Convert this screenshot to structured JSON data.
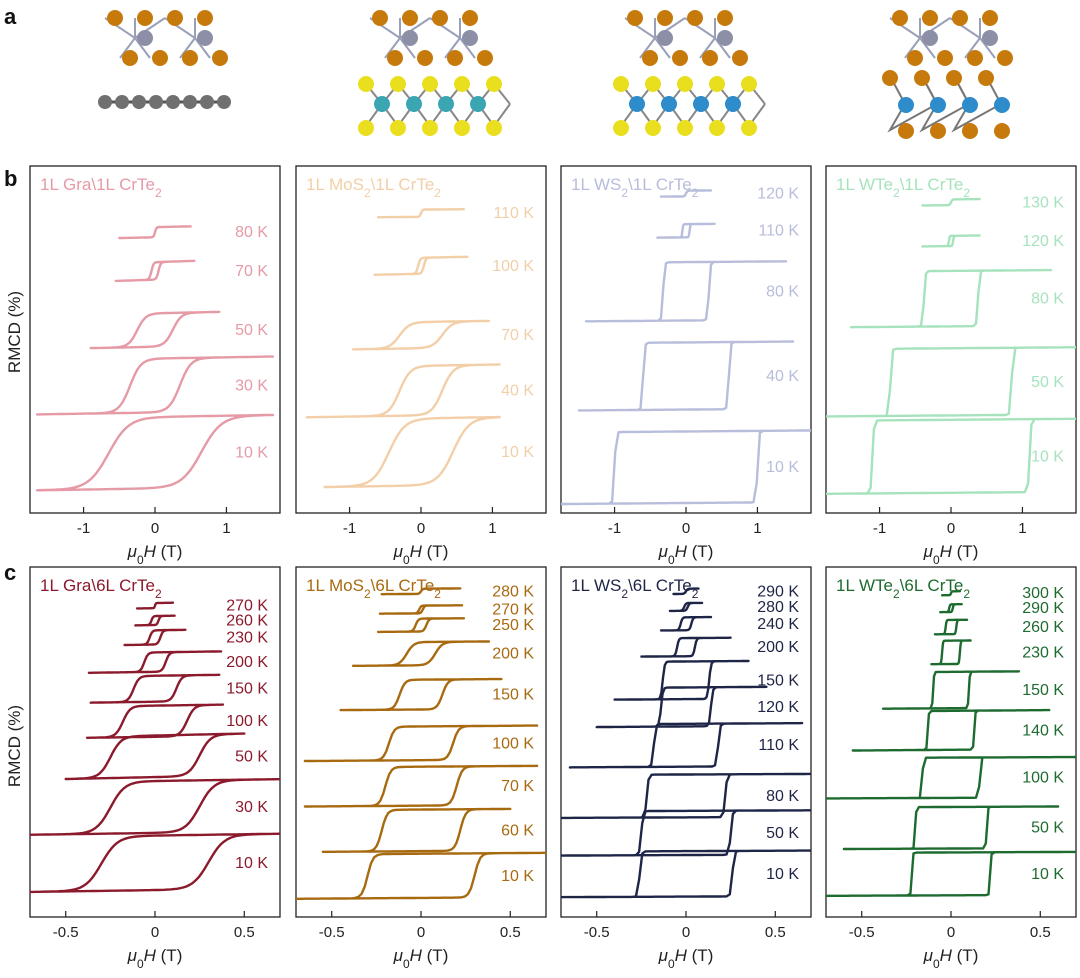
{
  "figure": {
    "panel_letters": [
      "a",
      "b",
      "c"
    ],
    "ylabel": "RMCD (%)",
    "xlabel_mu": "μ",
    "xlabel_sub": "0",
    "xlabel_H": "H",
    "xlabel_unit": " (T)"
  },
  "structures": [
    {
      "name": "Gra/CrTe2",
      "substrate": "graphene",
      "colors": {
        "cr": "#8c8fa6",
        "te": "#c77a0c",
        "c": "#707070"
      }
    },
    {
      "name": "MoS2/CrTe2",
      "substrate": "MoS2",
      "colors": {
        "cr": "#8c8fa6",
        "te": "#c77a0c",
        "m": "#3aa6b4",
        "x": "#eadf1e"
      }
    },
    {
      "name": "WS2/CrTe2",
      "substrate": "WS2",
      "colors": {
        "cr": "#8c8fa6",
        "te": "#c77a0c",
        "m": "#2d8cc9",
        "x": "#eadf1e"
      }
    },
    {
      "name": "WTe2/CrTe2",
      "substrate": "WTe2",
      "colors": {
        "cr": "#8c8fa6",
        "te": "#c77a0c",
        "m": "#2d8cc9",
        "x": "#c77a0c"
      }
    }
  ],
  "chart_data": [
    {
      "type": "line",
      "row": "b",
      "col": 0,
      "title_pre": "1L Gra\\1L CrTe",
      "title_sub": "2",
      "title_post": "",
      "color": "#e59aa6",
      "xlim": [
        -1.75,
        1.75
      ],
      "xticks": [
        -1,
        0,
        1
      ],
      "xtick_labels": [
        "-1",
        "0",
        "1"
      ],
      "xlabel": "μ0H (T)",
      "ylabel": "RMCD (%)",
      "series": [
        {
          "name": "80 K",
          "offset": 9.1,
          "hc": 0.0,
          "amp": 0.35,
          "w": 0.02,
          "xmin": -0.5,
          "xmax": 0.5,
          "slope": 0.05
        },
        {
          "name": "70 K",
          "offset": 7.65,
          "hc": 0.05,
          "amp": 0.6,
          "w": 0.03,
          "xmin": -0.55,
          "xmax": 0.55,
          "slope": 0.08
        },
        {
          "name": "50 K",
          "offset": 5.35,
          "hc": 0.25,
          "amp": 1.15,
          "w": 0.12,
          "xmin": -0.9,
          "xmax": 0.9,
          "slope": 0.05
        },
        {
          "name": "30 K",
          "offset": 3.1,
          "hc": 0.35,
          "amp": 1.85,
          "w": 0.15,
          "xmin": -1.65,
          "xmax": 1.65,
          "slope": 0.04
        },
        {
          "name": "10 K",
          "offset": 0.5,
          "hc": 0.65,
          "amp": 2.45,
          "w": 0.28,
          "xmin": -1.65,
          "xmax": 1.65,
          "slope": 0.04
        }
      ]
    },
    {
      "type": "line",
      "row": "b",
      "col": 1,
      "title_pre": "1L MoS",
      "title_sub": "2",
      "title_post": "\\1L CrTe",
      "title_sub2": "2",
      "color": "#f2cfa8",
      "xlim": [
        -1.75,
        1.75
      ],
      "xticks": [
        -1,
        0,
        1
      ],
      "xtick_labels": [
        "-1",
        "0",
        "1"
      ],
      "xlabel": "μ0H (T)",
      "ylabel": "RMCD (%)",
      "series": [
        {
          "name": "110 K",
          "offset": 9.8,
          "hc": 0.0,
          "amp": 0.25,
          "w": 0.02,
          "xmin": -0.6,
          "xmax": 0.6,
          "slope": 0.02
        },
        {
          "name": "100 K",
          "offset": 7.85,
          "hc": 0.04,
          "amp": 0.55,
          "w": 0.03,
          "xmin": -0.65,
          "xmax": 0.65,
          "slope": 0.05
        },
        {
          "name": "70 K",
          "offset": 5.3,
          "hc": 0.3,
          "amp": 0.9,
          "w": 0.14,
          "xmin": -0.95,
          "xmax": 0.95,
          "slope": 0.04
        },
        {
          "name": "40 K",
          "offset": 3.0,
          "hc": 0.3,
          "amp": 1.7,
          "w": 0.15,
          "xmin": -1.6,
          "xmax": 1.1,
          "slope": 0.04
        },
        {
          "name": "10 K",
          "offset": 0.6,
          "hc": 0.45,
          "amp": 2.3,
          "w": 0.22,
          "xmin": -1.35,
          "xmax": 1.1,
          "slope": 0.04
        }
      ]
    },
    {
      "type": "line",
      "row": "b",
      "col": 2,
      "title_pre": "1L WS",
      "title_sub": "2",
      "title_post": "\\1L CrTe",
      "title_sub2": "2",
      "color": "#b7bddb",
      "xlim": [
        -1.75,
        1.75
      ],
      "xticks": [
        -1,
        0,
        1
      ],
      "xtick_labels": [
        "-1",
        "0",
        "1"
      ],
      "xlabel": "μ0H (T)",
      "ylabel": "RMCD (%)",
      "series": [
        {
          "name": "120 K",
          "offset": 10.5,
          "hc": 0.0,
          "amp": 0.2,
          "w": 0.02,
          "xmin": -0.35,
          "xmax": 0.35,
          "slope": 0.02
        },
        {
          "name": "110 K",
          "offset": 9.1,
          "hc": 0.05,
          "amp": 0.45,
          "w": 0.01,
          "xmin": -0.4,
          "xmax": 0.4,
          "slope": 0.03
        },
        {
          "name": "80 K",
          "offset": 6.25,
          "hc": 0.32,
          "amp": 2.0,
          "w": 0.02,
          "xmin": -1.4,
          "xmax": 1.4,
          "slope": 0.02
        },
        {
          "name": "40 K",
          "offset": 3.2,
          "hc": 0.6,
          "amp": 2.3,
          "w": 0.02,
          "xmin": -1.5,
          "xmax": 1.5,
          "slope": 0.02
        },
        {
          "name": "10 K",
          "offset": 0.0,
          "hc": 1.0,
          "amp": 2.45,
          "w": 0.02,
          "xmin": -1.8,
          "xmax": 1.8,
          "slope": 0.02
        }
      ]
    },
    {
      "type": "line",
      "row": "b",
      "col": 3,
      "title_pre": "1L WTe",
      "title_sub": "2",
      "title_post": "\\1L CrTe",
      "title_sub2": "2",
      "color": "#a6e3bd",
      "xlim": [
        -1.75,
        1.75
      ],
      "xticks": [
        -1,
        0,
        1
      ],
      "xtick_labels": [
        "-1",
        "0",
        "1"
      ],
      "xlabel": "μ0H (T)",
      "ylabel": "RMCD (%)",
      "series": [
        {
          "name": "130 K",
          "offset": 10.2,
          "hc": 0.0,
          "amp": 0.2,
          "w": 0.02,
          "xmin": -0.4,
          "xmax": 0.4,
          "slope": 0.02
        },
        {
          "name": "120 K",
          "offset": 8.8,
          "hc": 0.03,
          "amp": 0.35,
          "w": 0.01,
          "xmin": -0.4,
          "xmax": 0.4,
          "slope": 0.03
        },
        {
          "name": "80 K",
          "offset": 6.05,
          "hc": 0.38,
          "amp": 1.9,
          "w": 0.02,
          "xmin": -1.4,
          "xmax": 1.4,
          "slope": 0.02
        },
        {
          "name": "50 K",
          "offset": 3.0,
          "hc": 0.85,
          "amp": 2.3,
          "w": 0.02,
          "xmin": -1.8,
          "xmax": 1.8,
          "slope": 0.02
        },
        {
          "name": "10 K",
          "offset": 0.35,
          "hc": 1.1,
          "amp": 2.5,
          "w": 0.02,
          "xmin": -1.8,
          "xmax": 1.8,
          "slope": 0.02
        }
      ]
    },
    {
      "type": "line",
      "row": "c",
      "col": 0,
      "title_pre": "1L Gra\\6L CrTe",
      "title_sub": "2",
      "title_post": "",
      "color": "#8b1a2c",
      "xlim": [
        -0.7,
        0.7
      ],
      "xticks": [
        -0.5,
        0,
        0.5
      ],
      "xtick_labels": [
        "-0.5",
        "0",
        "0.5"
      ],
      "xlabel": "μ0H (T)",
      "ylabel": "RMCD (%)",
      "series": [
        {
          "name": "270 K",
          "offset": 11.5,
          "hc": 0.0,
          "amp": 0.2,
          "w": 0.005,
          "xmin": -0.1,
          "xmax": 0.1,
          "slope": 0.1
        },
        {
          "name": "260 K",
          "offset": 10.85,
          "hc": 0.02,
          "amp": 0.35,
          "w": 0.01,
          "xmin": -0.11,
          "xmax": 0.11,
          "slope": 0.1
        },
        {
          "name": "230 K",
          "offset": 10.1,
          "hc": 0.03,
          "amp": 0.55,
          "w": 0.015,
          "xmin": -0.17,
          "xmax": 0.17,
          "slope": 0.1
        },
        {
          "name": "200 K",
          "offset": 9.05,
          "hc": 0.06,
          "amp": 0.75,
          "w": 0.02,
          "xmin": -0.37,
          "xmax": 0.37,
          "slope": 0.1
        },
        {
          "name": "150 K",
          "offset": 7.9,
          "hc": 0.12,
          "amp": 1.0,
          "w": 0.03,
          "xmin": -0.36,
          "xmax": 0.36,
          "slope": 0.1
        },
        {
          "name": "100 K",
          "offset": 6.55,
          "hc": 0.18,
          "amp": 1.2,
          "w": 0.04,
          "xmin": -0.38,
          "xmax": 0.38,
          "slope": 0.1
        },
        {
          "name": "50 K",
          "offset": 5.0,
          "hc": 0.25,
          "amp": 1.6,
          "w": 0.06,
          "xmin": -0.5,
          "xmax": 0.5,
          "slope": 0.15
        },
        {
          "name": "30 K",
          "offset": 2.85,
          "hc": 0.25,
          "amp": 2.0,
          "w": 0.08,
          "xmin": -0.7,
          "xmax": 0.7,
          "slope": 0.1
        },
        {
          "name": "10 K",
          "offset": 0.65,
          "hc": 0.3,
          "amp": 2.1,
          "w": 0.09,
          "xmin": -0.7,
          "xmax": 0.7,
          "slope": 0.1
        }
      ]
    },
    {
      "type": "line",
      "row": "c",
      "col": 1,
      "title_pre": "1L MoS",
      "title_sub": "2",
      "title_post": "\\6L CrTe",
      "title_sub2": "2",
      "color": "#a86a10",
      "xlim": [
        -0.7,
        0.7
      ],
      "xticks": [
        -0.5,
        0,
        0.5
      ],
      "xtick_labels": [
        "-0.5",
        "0",
        "0.5"
      ],
      "xlabel": "μ0H (T)",
      "ylabel": "RMCD (%)",
      "series": [
        {
          "name": "280 K",
          "offset": 12.05,
          "hc": 0.0,
          "amp": 0.2,
          "w": 0.01,
          "xmin": -0.22,
          "xmax": 0.22,
          "slope": 0.05
        },
        {
          "name": "270 K",
          "offset": 11.3,
          "hc": 0.01,
          "amp": 0.3,
          "w": 0.01,
          "xmin": -0.23,
          "xmax": 0.23,
          "slope": 0.05
        },
        {
          "name": "250 K",
          "offset": 10.6,
          "hc": 0.03,
          "amp": 0.5,
          "w": 0.015,
          "xmin": -0.24,
          "xmax": 0.24,
          "slope": 0.05
        },
        {
          "name": "200 K",
          "offset": 9.3,
          "hc": 0.08,
          "amp": 0.9,
          "w": 0.04,
          "xmin": -0.38,
          "xmax": 0.38,
          "slope": 0.05
        },
        {
          "name": "150 K",
          "offset": 7.6,
          "hc": 0.12,
          "amp": 1.15,
          "w": 0.03,
          "xmin": -0.45,
          "xmax": 0.45,
          "slope": 0.05
        },
        {
          "name": "100 K",
          "offset": 5.65,
          "hc": 0.18,
          "amp": 1.3,
          "w": 0.03,
          "xmin": -0.65,
          "xmax": 0.65,
          "slope": 0.05
        },
        {
          "name": "70 K",
          "offset": 3.9,
          "hc": 0.2,
          "amp": 1.5,
          "w": 0.03,
          "xmin": -0.65,
          "xmax": 0.65,
          "slope": 0.05
        },
        {
          "name": "60 K",
          "offset": 2.15,
          "hc": 0.22,
          "amp": 1.6,
          "w": 0.03,
          "xmin": -0.55,
          "xmax": 0.5,
          "slope": 0.05
        },
        {
          "name": "10 K",
          "offset": 0.35,
          "hc": 0.3,
          "amp": 1.7,
          "w": 0.03,
          "xmin": -0.7,
          "xmax": 0.7,
          "slope": 0.05
        }
      ]
    },
    {
      "type": "line",
      "row": "c",
      "col": 2,
      "title_pre": "1L WS",
      "title_sub": "2",
      "title_post": "\\6L CrTe",
      "title_sub2": "2",
      "color": "#1f2547",
      "xlim": [
        -0.7,
        0.7
      ],
      "xticks": [
        -0.5,
        0,
        0.5
      ],
      "xtick_labels": [
        "-0.5",
        "0",
        "0.5"
      ],
      "xlabel": "μ0H (T)",
      "ylabel": "RMCD (%)",
      "series": [
        {
          "name": "290 K",
          "offset": 12.05,
          "hc": 0.0,
          "amp": 0.2,
          "w": 0.01,
          "xmin": -0.07,
          "xmax": 0.07,
          "slope": 0.05
        },
        {
          "name": "280 K",
          "offset": 11.4,
          "hc": 0.01,
          "amp": 0.3,
          "w": 0.01,
          "xmin": -0.09,
          "xmax": 0.09,
          "slope": 0.05
        },
        {
          "name": "240 K",
          "offset": 10.65,
          "hc": 0.03,
          "amp": 0.5,
          "w": 0.01,
          "xmin": -0.14,
          "xmax": 0.14,
          "slope": 0.05
        },
        {
          "name": "200 K",
          "offset": 9.65,
          "hc": 0.05,
          "amp": 0.7,
          "w": 0.01,
          "xmin": -0.25,
          "xmax": 0.25,
          "slope": 0.05
        },
        {
          "name": "150 K",
          "offset": 8.0,
          "hc": 0.13,
          "amp": 1.45,
          "w": 0.01,
          "xmin": -0.4,
          "xmax": 0.35,
          "slope": 0.05
        },
        {
          "name": "120 K",
          "offset": 6.95,
          "hc": 0.14,
          "amp": 1.5,
          "w": 0.01,
          "xmin": -0.5,
          "xmax": 0.45,
          "slope": 0.05
        },
        {
          "name": "110 K",
          "offset": 5.4,
          "hc": 0.18,
          "amp": 1.65,
          "w": 0.01,
          "xmin": -0.65,
          "xmax": 0.65,
          "slope": 0.04
        },
        {
          "name": "80 K",
          "offset": 3.45,
          "hc": 0.22,
          "amp": 1.65,
          "w": 0.01,
          "xmin": -0.7,
          "xmax": 0.7,
          "slope": 0.03
        },
        {
          "name": "50 K",
          "offset": 2.0,
          "hc": 0.25,
          "amp": 1.7,
          "w": 0.01,
          "xmin": -0.7,
          "xmax": 0.7,
          "slope": 0.03
        },
        {
          "name": "10 K",
          "offset": 0.4,
          "hc": 0.26,
          "amp": 1.75,
          "w": 0.01,
          "xmin": -0.7,
          "xmax": 0.7,
          "slope": 0.03
        }
      ]
    },
    {
      "type": "line",
      "row": "c",
      "col": 3,
      "title_pre": "1L WTe",
      "title_sub": "2",
      "title_post": "\\6L CrTe",
      "title_sub2": "2",
      "color": "#1e6b30",
      "xlim": [
        -0.7,
        0.7
      ],
      "xticks": [
        -0.5,
        0,
        0.5
      ],
      "xtick_labels": [
        "-0.5",
        "0",
        "0.5"
      ],
      "xlabel": "μ0H (T)",
      "ylabel": "RMCD (%)",
      "series": [
        {
          "name": "300 K",
          "offset": 12.0,
          "hc": 0.0,
          "amp": 0.15,
          "w": 0.005,
          "xmin": -0.05,
          "xmax": 0.05,
          "slope": 0.05
        },
        {
          "name": "290 K",
          "offset": 11.35,
          "hc": 0.01,
          "amp": 0.3,
          "w": 0.005,
          "xmin": -0.06,
          "xmax": 0.06,
          "slope": 0.05
        },
        {
          "name": "260 K",
          "offset": 10.5,
          "hc": 0.03,
          "amp": 0.55,
          "w": 0.005,
          "xmin": -0.09,
          "xmax": 0.09,
          "slope": 0.05
        },
        {
          "name": "230 K",
          "offset": 9.35,
          "hc": 0.05,
          "amp": 0.9,
          "w": 0.005,
          "xmin": -0.11,
          "xmax": 0.11,
          "slope": 0.05
        },
        {
          "name": "150 K",
          "offset": 7.65,
          "hc": 0.1,
          "amp": 1.4,
          "w": 0.005,
          "xmin": -0.38,
          "xmax": 0.38,
          "slope": 0.05
        },
        {
          "name": "140 K",
          "offset": 6.05,
          "hc": 0.13,
          "amp": 1.5,
          "w": 0.005,
          "xmin": -0.55,
          "xmax": 0.55,
          "slope": 0.05
        },
        {
          "name": "100 K",
          "offset": 4.2,
          "hc": 0.16,
          "amp": 1.55,
          "w": 0.005,
          "xmin": -0.7,
          "xmax": 0.7,
          "slope": 0.03
        },
        {
          "name": "50 K",
          "offset": 2.25,
          "hc": 0.2,
          "amp": 1.6,
          "w": 0.005,
          "xmin": -0.6,
          "xmax": 0.6,
          "slope": 0.03
        },
        {
          "name": "10 K",
          "offset": 0.45,
          "hc": 0.22,
          "amp": 1.65,
          "w": 0.005,
          "xmin": -0.7,
          "xmax": 0.7,
          "slope": 0.03
        }
      ]
    }
  ]
}
